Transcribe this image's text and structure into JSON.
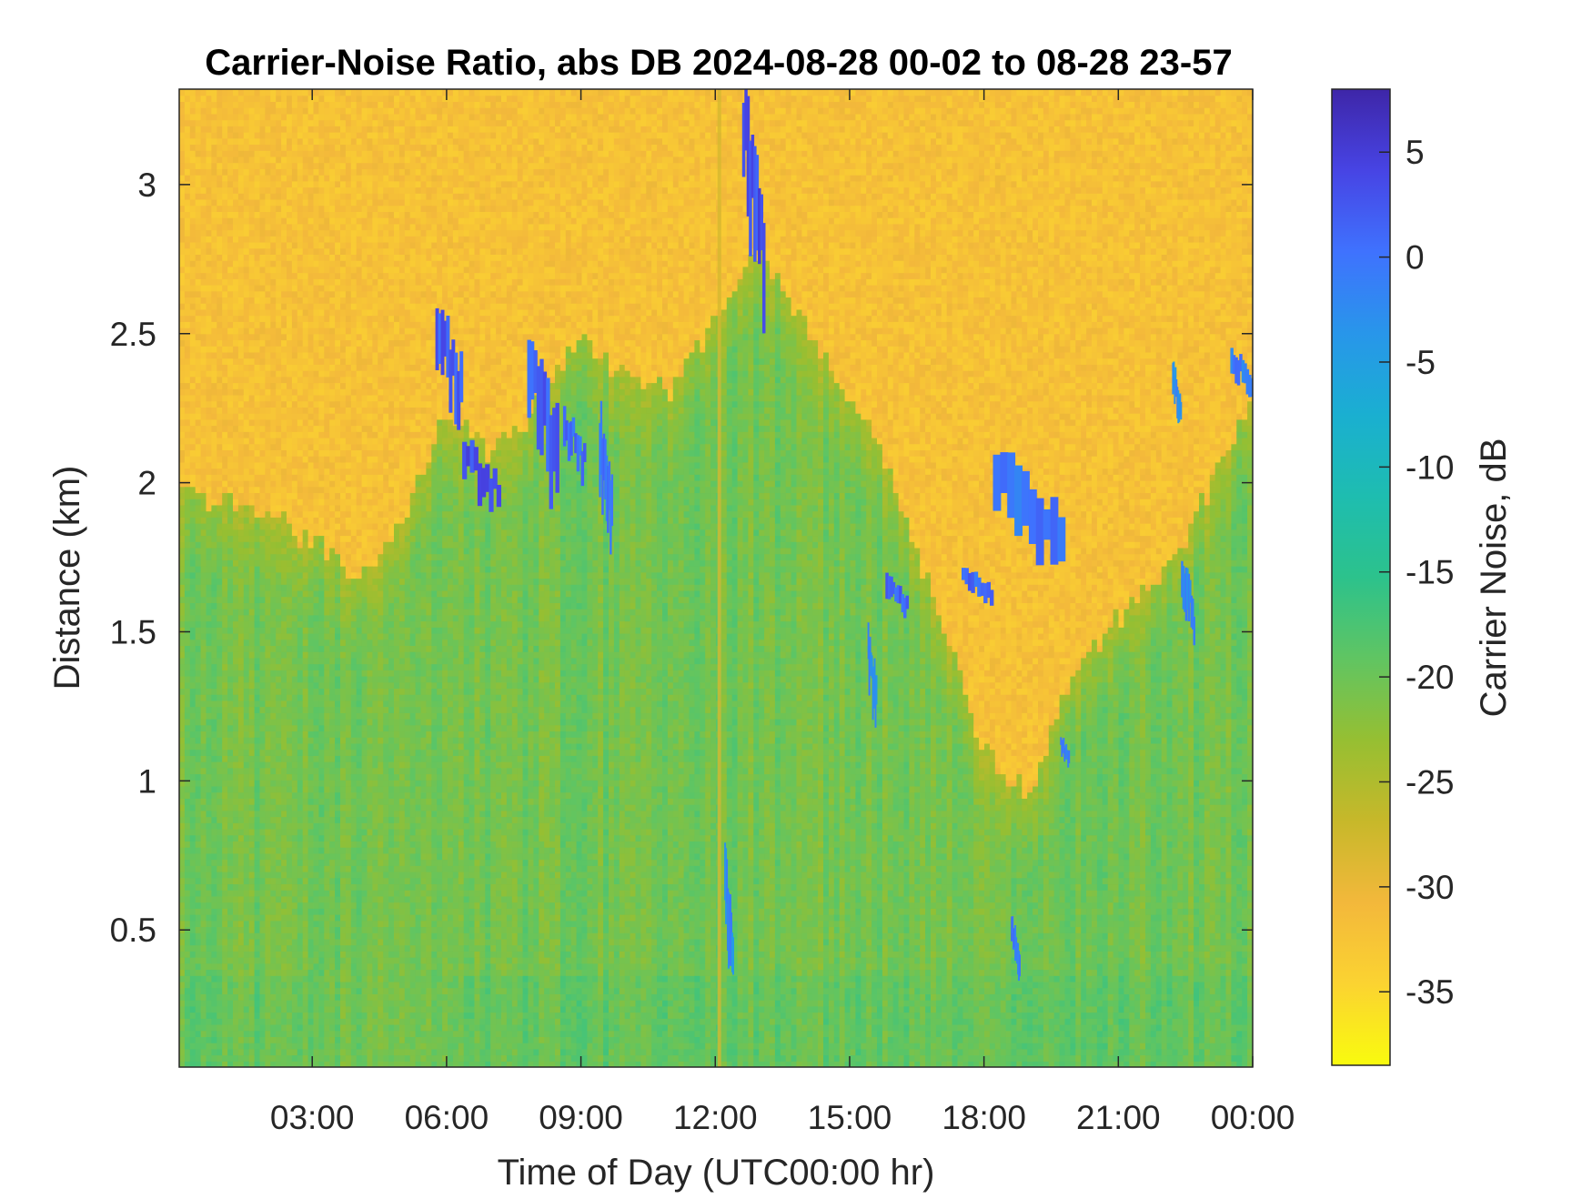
{
  "chart_data": {
    "type": "heatmap",
    "title": "Carrier-Noise Ratio, abs DB 2024-08-28 00-02 to 08-28 23-57",
    "xlabel": "Time of Day (UTC00:00 hr)",
    "ylabel": "Distance (km)",
    "colorbar_label": "Carrier Noise, dB",
    "x_range_hours": [
      0.03,
      24.0
    ],
    "y_range_km": [
      0.04,
      3.32
    ],
    "clim_db": [
      -38.5,
      8.0
    ],
    "x_ticks": [
      3,
      6,
      9,
      12,
      15,
      18,
      21,
      24
    ],
    "x_tick_labels": [
      "03:00",
      "06:00",
      "09:00",
      "12:00",
      "15:00",
      "18:00",
      "21:00",
      "00:00"
    ],
    "y_ticks": [
      0.5,
      1,
      1.5,
      2,
      2.5,
      3
    ],
    "y_tick_labels": [
      "0.5",
      "1",
      "1.5",
      "2",
      "2.5",
      "3"
    ],
    "colorbar_ticks": [
      5,
      0,
      -5,
      -10,
      -15,
      -20,
      -25,
      -30,
      -35
    ],
    "colorbar_tick_labels": [
      "5",
      "0",
      "-5",
      "-10",
      "-15",
      "-20",
      "-25",
      "-30",
      "-35"
    ],
    "colormap": "parula",
    "colormap_stops": [
      "#3e26a8",
      "#4744e4",
      "#3f72fe",
      "#2896ea",
      "#1aafd1",
      "#1ebdb0",
      "#2cc28c",
      "#60c562",
      "#96bf32",
      "#c7b82a",
      "#f3b83b",
      "#fbd331",
      "#f9fb0e"
    ],
    "background_level_db": -32,
    "boundary_layer_top_km": [
      [
        0.0,
        1.95
      ],
      [
        1.5,
        1.93
      ],
      [
        2.5,
        1.85
      ],
      [
        4.0,
        1.7
      ],
      [
        5.0,
        1.85
      ],
      [
        6.0,
        2.25
      ],
      [
        7.0,
        2.1
      ],
      [
        8.0,
        2.25
      ],
      [
        9.0,
        2.5
      ],
      [
        10.0,
        2.35
      ],
      [
        11.0,
        2.3
      ],
      [
        12.0,
        2.55
      ],
      [
        13.0,
        2.8
      ],
      [
        14.5,
        2.4
      ],
      [
        15.5,
        2.2
      ],
      [
        17.0,
        1.55
      ],
      [
        18.0,
        1.1
      ],
      [
        19.0,
        0.95
      ],
      [
        20.0,
        1.35
      ],
      [
        21.0,
        1.55
      ],
      [
        22.5,
        1.8
      ],
      [
        24.0,
        2.3
      ]
    ],
    "features": [
      {
        "t": [
          5.75,
          6.35
        ],
        "km": [
          2.2,
          2.62
        ],
        "db": 2
      },
      {
        "t": [
          6.35,
          7.2
        ],
        "km": [
          1.9,
          2.15
        ],
        "db": 3
      },
      {
        "t": [
          7.8,
          8.5
        ],
        "km": [
          1.95,
          2.5
        ],
        "db": 2
      },
      {
        "t": [
          8.6,
          9.1
        ],
        "km": [
          2.0,
          2.25
        ],
        "db": 1
      },
      {
        "t": [
          9.4,
          9.7
        ],
        "km": [
          1.8,
          2.25
        ],
        "db": 0
      },
      {
        "t": [
          12.6,
          13.1
        ],
        "km": [
          2.6,
          3.3
        ],
        "db": 3
      },
      {
        "t": [
          15.8,
          16.3
        ],
        "km": [
          1.55,
          1.7
        ],
        "db": 1
      },
      {
        "t": [
          17.5,
          18.2
        ],
        "km": [
          1.6,
          1.72
        ],
        "db": 1
      },
      {
        "t": [
          18.2,
          19.8
        ],
        "km": [
          1.7,
          2.1
        ],
        "db": 0
      },
      {
        "t": [
          15.4,
          15.6
        ],
        "km": [
          1.2,
          1.5
        ],
        "db": -2
      },
      {
        "t": [
          12.2,
          12.4
        ],
        "km": [
          0.28,
          0.75
        ],
        "db": -2
      },
      {
        "t": [
          18.6,
          18.8
        ],
        "km": [
          0.35,
          0.55
        ],
        "db": 0
      },
      {
        "t": [
          19.7,
          19.9
        ],
        "km": [
          1.05,
          1.15
        ],
        "db": -1
      },
      {
        "t": [
          22.4,
          22.7
        ],
        "km": [
          1.45,
          1.75
        ],
        "db": -2
      },
      {
        "t": [
          22.2,
          22.4
        ],
        "km": [
          2.2,
          2.4
        ],
        "db": -2
      },
      {
        "t": [
          23.5,
          24.0
        ],
        "km": [
          2.3,
          2.45
        ],
        "db": -1
      }
    ]
  }
}
